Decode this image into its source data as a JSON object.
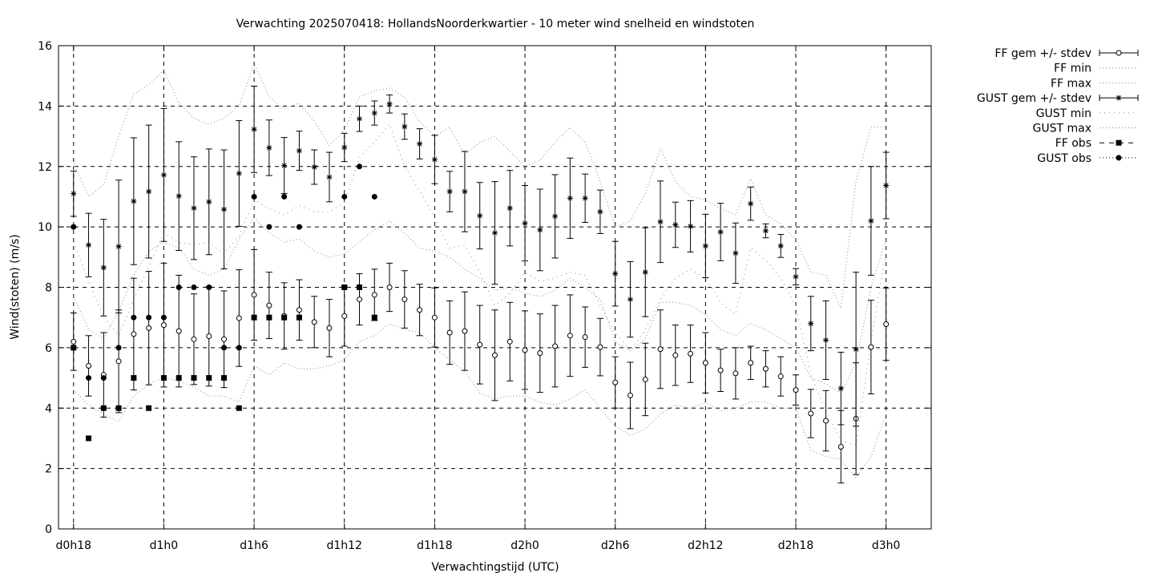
{
  "chart_data": {
    "type": "line",
    "title": "Verwachting 2025070418: HollandsNoorderkwartier - 10 meter wind snelheid en windstoten",
    "xlabel": "Verwachtingstijd (UTC)",
    "ylabel": "Wind(stoten) (m/s)",
    "xlim": [
      17,
      75
    ],
    "ylim": [
      0,
      16
    ],
    "xticks": [
      {
        "x": 18,
        "label": "d0h18"
      },
      {
        "x": 24,
        "label": "d1h0"
      },
      {
        "x": 30,
        "label": "d1h6"
      },
      {
        "x": 36,
        "label": "d1h12"
      },
      {
        "x": 42,
        "label": "d1h18"
      },
      {
        "x": 48,
        "label": "d2h0"
      },
      {
        "x": 54,
        "label": "d2h6"
      },
      {
        "x": 60,
        "label": "d2h12"
      },
      {
        "x": 66,
        "label": "d2h18"
      },
      {
        "x": 72,
        "label": "d3h0"
      }
    ],
    "yticks": [
      0,
      2,
      4,
      6,
      8,
      10,
      12,
      14,
      16
    ],
    "grid": true,
    "legend_position": "right",
    "legend": [
      "FF gem +/- stdev",
      "FF min",
      "FF max",
      "GUST gem +/- stdev",
      "GUST min",
      "GUST max",
      "FF obs",
      "GUST obs"
    ],
    "x": [
      18,
      19,
      20,
      21,
      22,
      23,
      24,
      25,
      26,
      27,
      28,
      29,
      30,
      31,
      32,
      33,
      34,
      35,
      36,
      37,
      38,
      39,
      40,
      41,
      42,
      43,
      44,
      45,
      46,
      47,
      48,
      49,
      50,
      51,
      52,
      53,
      54,
      55,
      56,
      57,
      58,
      59,
      60,
      61,
      62,
      63,
      64,
      65,
      66,
      67,
      68,
      69,
      70,
      71,
      72
    ],
    "ff_mean": [
      6.2,
      5.4,
      5.1,
      5.55,
      6.45,
      6.65,
      6.75,
      6.55,
      6.28,
      6.38,
      6.28,
      6.98,
      7.75,
      7.4,
      7.05,
      7.25,
      6.85,
      6.65,
      7.05,
      7.6,
      7.75,
      8.0,
      7.6,
      7.25,
      7.0,
      6.5,
      6.55,
      6.1,
      5.75,
      6.2,
      5.92,
      5.82,
      6.05,
      6.4,
      6.35,
      6.02,
      4.85,
      4.42,
      4.95,
      5.95,
      5.75,
      5.8,
      5.5,
      5.25,
      5.15,
      5.5,
      5.3,
      5.05,
      4.6,
      3.82,
      3.58,
      2.72,
      3.65,
      6.02,
      6.78
    ],
    "ff_sd": [
      0.95,
      1.0,
      1.4,
      1.7,
      1.85,
      1.88,
      2.05,
      1.85,
      1.5,
      1.65,
      1.6,
      1.6,
      1.5,
      1.1,
      1.1,
      1.0,
      0.85,
      0.95,
      1.0,
      0.85,
      0.85,
      0.8,
      0.95,
      0.85,
      0.98,
      1.05,
      1.3,
      1.3,
      1.5,
      1.3,
      1.3,
      1.3,
      1.35,
      1.35,
      1.0,
      0.95,
      0.85,
      1.1,
      1.2,
      1.3,
      1.0,
      0.95,
      1.0,
      0.7,
      0.85,
      0.55,
      0.6,
      0.65,
      0.5,
      0.8,
      1.0,
      1.2,
      1.85,
      1.55,
      1.2
    ],
    "ff_min": [
      4.6,
      4.1,
      3.8,
      3.55,
      4.4,
      4.8,
      5.0,
      4.9,
      4.7,
      4.4,
      4.4,
      4.2,
      5.4,
      5.1,
      5.5,
      5.3,
      5.3,
      5.4,
      5.6,
      6.2,
      6.4,
      6.8,
      6.6,
      6.5,
      6.0,
      5.6,
      5.2,
      4.5,
      4.3,
      4.4,
      4.4,
      4.2,
      4.1,
      4.3,
      4.6,
      4.0,
      3.4,
      3.1,
      3.3,
      3.8,
      4.1,
      4.0,
      4.2,
      3.9,
      4.0,
      4.2,
      4.2,
      4.0,
      4.0,
      2.6,
      2.4,
      2.3,
      1.7,
      2.4,
      3.8
    ],
    "ff_max": [
      7.7,
      6.6,
      6.3,
      7.2,
      8.4,
      9.2,
      9.5,
      9.3,
      8.6,
      8.4,
      8.6,
      9.6,
      10.3,
      9.8,
      9.5,
      9.6,
      9.2,
      9.0,
      9.1,
      9.5,
      9.9,
      10.2,
      9.8,
      9.3,
      9.2,
      9.0,
      8.6,
      8.3,
      7.9,
      8.0,
      7.8,
      7.7,
      7.9,
      8.3,
      8.0,
      7.6,
      6.2,
      5.9,
      6.3,
      7.5,
      7.5,
      7.4,
      7.1,
      6.6,
      6.4,
      6.8,
      6.6,
      6.3,
      6.0,
      5.0,
      4.8,
      4.5,
      5.5,
      8.0,
      9.6
    ],
    "gust_mean": [
      11.1,
      9.4,
      8.65,
      9.35,
      10.85,
      11.17,
      11.72,
      11.02,
      10.62,
      10.83,
      10.58,
      11.77,
      13.23,
      12.62,
      12.03,
      12.52,
      11.98,
      11.65,
      12.63,
      13.58,
      13.77,
      14.07,
      13.32,
      12.75,
      12.23,
      11.17,
      11.17,
      10.37,
      9.8,
      10.62,
      10.12,
      9.9,
      10.35,
      10.95,
      10.95,
      10.5,
      8.45,
      7.6,
      8.5,
      10.17,
      10.07,
      10.02,
      9.37,
      9.83,
      9.13,
      10.77,
      9.87,
      9.37,
      8.35,
      6.8,
      6.25,
      4.65,
      5.95,
      10.2,
      11.37
    ],
    "gust_sd": [
      0.75,
      1.05,
      1.6,
      2.2,
      2.1,
      2.2,
      2.2,
      1.8,
      1.7,
      1.75,
      1.97,
      1.75,
      1.43,
      0.92,
      0.93,
      0.65,
      0.57,
      0.82,
      0.47,
      0.42,
      0.4,
      0.3,
      0.42,
      0.5,
      0.8,
      0.67,
      1.33,
      1.1,
      1.7,
      1.25,
      1.25,
      1.35,
      1.38,
      1.33,
      0.8,
      0.72,
      1.07,
      1.25,
      1.47,
      1.35,
      0.75,
      0.85,
      1.05,
      0.95,
      1.0,
      0.55,
      0.23,
      0.38,
      0.27,
      0.9,
      1.3,
      1.2,
      2.55,
      1.8,
      1.1
    ],
    "gust_min": [
      9.5,
      8.2,
      7.0,
      6.4,
      7.6,
      8.7,
      9.8,
      9.5,
      9.4,
      9.5,
      9.1,
      9.7,
      10.9,
      10.6,
      10.4,
      10.7,
      10.5,
      10.5,
      10.8,
      12.3,
      12.8,
      13.4,
      12.0,
      11.2,
      10.3,
      9.3,
      9.4,
      8.5,
      7.4,
      7.8,
      8.5,
      8.2,
      8.3,
      8.5,
      8.4,
      7.4,
      6.5,
      5.9,
      6.6,
      7.6,
      8.3,
      8.6,
      8.3,
      7.5,
      7.1,
      9.3,
      8.9,
      8.3,
      7.4,
      5.1,
      3.9,
      2.9,
      2.8,
      6.2,
      9.2
    ],
    "gust_max": [
      12.1,
      11.0,
      11.4,
      13.0,
      14.4,
      14.7,
      15.2,
      14.1,
      13.6,
      13.4,
      13.6,
      14.0,
      15.4,
      14.3,
      13.9,
      14.1,
      13.5,
      12.7,
      13.2,
      14.3,
      14.5,
      14.6,
      14.3,
      13.5,
      13.0,
      13.3,
      12.4,
      12.8,
      13.0,
      12.5,
      12.0,
      12.2,
      12.8,
      13.3,
      12.8,
      11.5,
      10.0,
      10.2,
      11.1,
      12.6,
      11.5,
      11.0,
      10.9,
      10.6,
      10.4,
      11.6,
      10.4,
      10.1,
      9.6,
      8.5,
      8.4,
      7.3,
      11.5,
      13.3,
      13.3
    ],
    "ff_obs": {
      "x": [
        18,
        19,
        20,
        21,
        22,
        23,
        24,
        25,
        26,
        27,
        28,
        29,
        30,
        31,
        32,
        33,
        36,
        37,
        38
      ],
      "y": [
        6,
        3,
        4,
        4,
        5,
        4,
        5,
        5,
        5,
        5,
        5,
        4,
        7,
        7,
        7,
        7,
        8,
        8,
        7
      ]
    },
    "gust_obs": {
      "x": [
        18,
        19,
        20,
        21,
        22,
        23,
        24,
        25,
        26,
        27,
        28,
        29,
        30,
        31,
        32,
        33,
        36,
        37,
        38
      ],
      "y": [
        10,
        5,
        5,
        6,
        7,
        7,
        7,
        8,
        8,
        8,
        6,
        6,
        11,
        10,
        11,
        10,
        11,
        12,
        11
      ]
    }
  }
}
